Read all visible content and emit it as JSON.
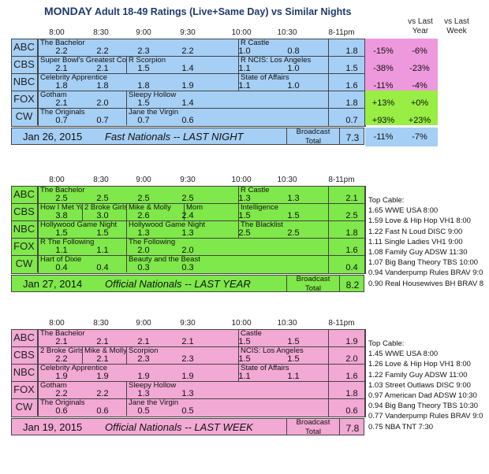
{
  "title": {
    "bold": "MONDAY",
    "rest": " Adult 18-49 Ratings (Live+Same Day) vs Similar Nights"
  },
  "headers": {
    "vs_last_year": [
      "vs Last",
      "Year"
    ],
    "vs_last_week": [
      "vs Last",
      "Week"
    ]
  },
  "times": [
    "8:00",
    "8:30",
    "9:00",
    "9:30",
    "10:00",
    "10:30",
    "8-11pm"
  ],
  "colors": {
    "top_bg": "#a6cff5",
    "mid_bg": "#7fe84a",
    "bot_bg": "#f2a9d4",
    "pos_change_bg": "#99ee44",
    "neg_change_bg": "#ee99dd"
  },
  "top": {
    "date": "Jan 26, 2015",
    "label": "Fast Nationals -- LAST NIGHT",
    "broadcast_label": [
      "Broadcast",
      "Total"
    ],
    "broadcast_total": "7.3",
    "total_vs_year": "-11%",
    "total_vs_week": "-7%",
    "rows": [
      {
        "net": "ABC",
        "shows": [
          "The Bachelor",
          "R Castle"
        ],
        "vals": [
          "2.2",
          "2.2",
          "2.3",
          "2.2",
          "1.0",
          "0.8"
        ],
        "avg": "1.8",
        "vs_year": "-15%",
        "vs_week": "-6%"
      },
      {
        "net": "CBS",
        "shows": [
          "Super Bowl's Greatest Com",
          "R Scorpion",
          "R NCIS: Los Angeles"
        ],
        "vals": [
          "2.1",
          "2.1",
          "1.5",
          "1.4",
          "1.1",
          "1.0"
        ],
        "avg": "1.5",
        "vs_year": "-38%",
        "vs_week": "-23%"
      },
      {
        "net": "NBC",
        "shows": [
          "Celebrity Apprentice",
          "State of Affairs"
        ],
        "vals": [
          "1.8",
          "1.8",
          "1.8",
          "1.9",
          "1.1",
          "1.0"
        ],
        "avg": "1.6",
        "vs_year": "-11%",
        "vs_week": "-4%"
      },
      {
        "net": "FOX",
        "shows": [
          "Gotham",
          "Sleepy Hollow"
        ],
        "vals": [
          "2.1",
          "2.0",
          "1.5",
          "1.4",
          "",
          ""
        ],
        "avg": "1.8",
        "vs_year": "+13%",
        "vs_week": "+0%"
      },
      {
        "net": "CW",
        "shows": [
          "The Originals",
          "Jane the Virgin"
        ],
        "vals": [
          "0.7",
          "0.7",
          "0.7",
          "0.6",
          "",
          ""
        ],
        "avg": "0.7",
        "vs_year": "+93%",
        "vs_week": "+23%"
      }
    ]
  },
  "mid": {
    "date": "Jan 27, 2014",
    "label": "Official Nationals -- LAST YEAR",
    "broadcast_label": [
      "Broadcast",
      "Total"
    ],
    "broadcast_total": "8.2",
    "rows": [
      {
        "net": "ABC",
        "shows": [
          "The Bachelor",
          "R Castle"
        ],
        "vals": [
          "2.5",
          "2.5",
          "2.5",
          "2.5",
          "1.3",
          "1.3"
        ],
        "avg": "2.1"
      },
      {
        "net": "CBS",
        "shows": [
          "How I Met Yo",
          "2 Broke Girls",
          "Mike & Molly",
          "Mom",
          "Intelligence"
        ],
        "vals": [
          "3.8",
          "3.0",
          "2.6",
          "2.4",
          "1.5",
          "1.5"
        ],
        "avg": "2.5"
      },
      {
        "net": "NBC",
        "shows": [
          "Hollywood Game Night",
          "Hollywood Game Night",
          "The Blacklist"
        ],
        "vals": [
          "1.5",
          "1.5",
          "1.3",
          "1.3",
          "2.5",
          "2.5"
        ],
        "avg": "1.8"
      },
      {
        "net": "FOX",
        "shows": [
          "R The Following",
          "The Following"
        ],
        "vals": [
          "1.1",
          "1.1",
          "2.0",
          "2.0",
          "",
          ""
        ],
        "avg": "1.6"
      },
      {
        "net": "CW",
        "shows": [
          "Hart of Dixie",
          "Beauty and the Beast"
        ],
        "vals": [
          "0.4",
          "0.4",
          "0.3",
          "0.3",
          "",
          ""
        ],
        "avg": "0.4"
      }
    ],
    "top_cable_title": "Top Cable:",
    "top_cable": [
      "1.65 WWE USA 8:00",
      "1.59 Love & Hip Hop VH1 8:00",
      "1.22 Fast N Loud DISC 9:00",
      "1.11 Single Ladies VH1 9:00",
      "1.08 Family Guy ADSW 11:30",
      "1.07 Big Bang Theory TBS 10:00",
      "0.94 Vanderpump Rules BRAV 9:0",
      "0.90 Real Housewives BH BRAV 8"
    ]
  },
  "bot": {
    "date": "Jan 19, 2015",
    "label": "Official Nationals -- LAST WEEK",
    "broadcast_label": [
      "Broadcast",
      "Total"
    ],
    "broadcast_total": "7.8",
    "rows": [
      {
        "net": "ABC",
        "shows": [
          "The Bachelor",
          "Castle"
        ],
        "vals": [
          "2.1",
          "2.1",
          "2.1",
          "2.1",
          "1.5",
          "1.5"
        ],
        "avg": "1.9"
      },
      {
        "net": "CBS",
        "shows": [
          "2 Broke Girls",
          "Mike & Molly",
          "Scorpion",
          "NCIS: Los Angeles"
        ],
        "vals": [
          "2.2",
          "2.1",
          "2.3",
          "2.3",
          "1.5",
          "1.5"
        ],
        "avg": "2.0"
      },
      {
        "net": "NBC",
        "shows": [
          "Celebrity Apprentice",
          "State of Affairs"
        ],
        "vals": [
          "1.9",
          "1.9",
          "1.9",
          "1.9",
          "1.1",
          "1.1"
        ],
        "avg": "1.6"
      },
      {
        "net": "FOX",
        "shows": [
          "Gotham",
          "Sleepy Hollow"
        ],
        "vals": [
          "2.2",
          "2.2",
          "1.3",
          "1.3",
          "",
          ""
        ],
        "avg": "1.8"
      },
      {
        "net": "CW",
        "shows": [
          "The Originals",
          "Jane the Virgin"
        ],
        "vals": [
          "0.6",
          "0.6",
          "0.5",
          "0.5",
          "",
          ""
        ],
        "avg": "0.6"
      }
    ],
    "top_cable_title": "Top Cable:",
    "top_cable": [
      "1.45 WWE USA 8:00",
      "1.26 Love & Hip Hop VH1 8:00",
      "1.22 Family Guy ADSW 11:00",
      "1.03 Street Outlaws DISC 9:00",
      "0.97 American Dad ADSW 10:30",
      "0.94 Big Bang Theory TBS 10:30",
      "0.77 Vanderpump Rules BRAV 9:0",
      "0.75 NBA TNT 7:30"
    ]
  }
}
